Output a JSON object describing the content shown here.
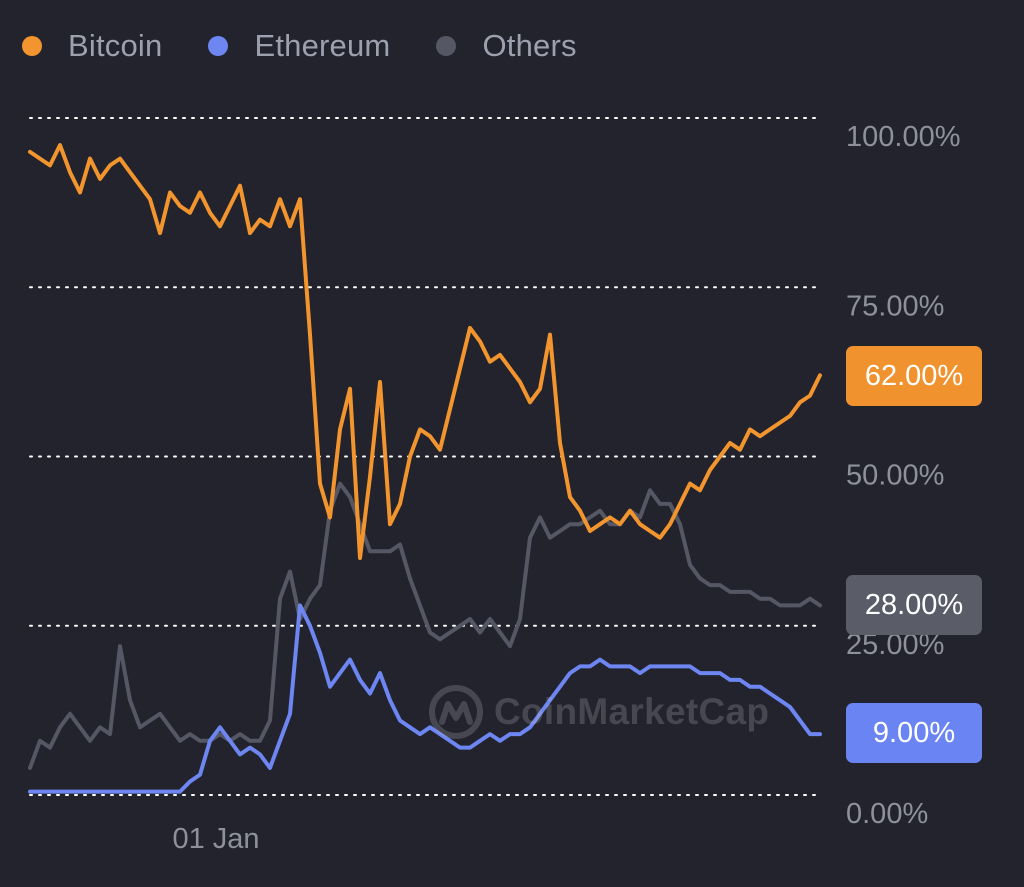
{
  "legend": [
    {
      "label": "Bitcoin",
      "color": "#f2952e"
    },
    {
      "label": "Ethereum",
      "color": "#6d86f2"
    },
    {
      "label": "Others",
      "color": "#555864"
    }
  ],
  "watermark": "CoinMarketCap",
  "colors": {
    "background": "#22232c",
    "grid": "#ffffff",
    "axis_text": "#8e909b"
  },
  "current_values": [
    {
      "series": "Bitcoin",
      "label": "62.00%",
      "color": "#f0922e"
    },
    {
      "series": "Others",
      "label": "28.00%",
      "color": "#5a5d68"
    },
    {
      "series": "Ethereum",
      "label": "9.00%",
      "color": "#6b84f4"
    }
  ],
  "chart_data": {
    "type": "line",
    "title": "",
    "xlabel": "",
    "ylabel": "",
    "ylim": [
      0,
      100
    ],
    "y_ticks": [
      0,
      25,
      50,
      75,
      100
    ],
    "y_tick_labels": [
      "0.00%",
      "25.00%",
      "50.00%",
      "75.00%",
      "100.00%"
    ],
    "x_ticks": [
      {
        "index": 17,
        "label": "01 Jan"
      }
    ],
    "grid": true,
    "legend_position": "top-left",
    "x_index": [
      0,
      1,
      2,
      3,
      4,
      5,
      6,
      7,
      8,
      9,
      10,
      11,
      12,
      13,
      14,
      15,
      16,
      17,
      18,
      19,
      20,
      21,
      22,
      23,
      24,
      25,
      26,
      27,
      28,
      29,
      30,
      31,
      32,
      33,
      34,
      35,
      36,
      37,
      38,
      39,
      40,
      41,
      42,
      43,
      44,
      45,
      46,
      47,
      48,
      49,
      50,
      51,
      52,
      53,
      54,
      55,
      56,
      57,
      58,
      59,
      60,
      61,
      62,
      63,
      64,
      65,
      66,
      67,
      68,
      69,
      70,
      71,
      72,
      73,
      74,
      75,
      76,
      77,
      78,
      79
    ],
    "series": [
      {
        "name": "Bitcoin",
        "color": "#f2952e",
        "values": [
          95,
          94,
          93,
          96,
          92,
          89,
          94,
          91,
          93,
          94,
          92,
          90,
          88,
          83,
          89,
          87,
          86,
          89,
          86,
          84,
          87,
          90,
          83,
          85,
          84,
          88,
          84,
          88,
          68,
          46,
          41,
          54,
          60,
          35,
          47,
          61,
          40,
          43,
          50,
          54,
          53,
          51,
          57,
          63,
          69,
          67,
          64,
          65,
          63,
          61,
          58,
          60,
          68,
          52,
          44,
          42,
          39,
          40,
          41,
          40,
          42,
          40,
          39,
          38,
          40,
          43,
          46,
          45,
          48,
          50,
          52,
          51,
          54,
          53,
          54,
          55,
          56,
          58,
          59,
          62
        ]
      },
      {
        "name": "Ethereum",
        "color": "#6d86f2",
        "values": [
          0.5,
          0.5,
          0.5,
          0.5,
          0.5,
          0.5,
          0.5,
          0.5,
          0.5,
          0.5,
          0.5,
          0.5,
          0.5,
          0.5,
          0.5,
          0.5,
          2,
          3,
          8,
          10,
          8,
          6,
          7,
          6,
          4,
          8,
          12,
          28,
          25,
          21,
          16,
          18,
          20,
          17,
          15,
          18,
          14,
          11,
          10,
          9,
          10,
          9,
          8,
          7,
          7,
          8,
          9,
          8,
          9,
          9,
          10,
          12,
          14,
          16,
          18,
          19,
          19,
          20,
          19,
          19,
          19,
          18,
          19,
          19,
          19,
          19,
          19,
          18,
          18,
          18,
          17,
          17,
          16,
          16,
          15,
          14,
          13,
          11,
          9,
          9
        ]
      },
      {
        "name": "Others",
        "color": "#555864",
        "values": [
          4,
          8,
          7,
          10,
          12,
          10,
          8,
          10,
          9,
          22,
          14,
          10,
          11,
          12,
          10,
          8,
          9,
          8,
          8,
          9,
          8,
          9,
          8,
          8,
          11,
          29,
          33,
          26,
          29,
          31,
          42,
          46,
          44,
          40,
          36,
          36,
          36,
          37,
          32,
          28,
          24,
          23,
          24,
          25,
          26,
          24,
          26,
          24,
          22,
          26,
          38,
          41,
          38,
          39,
          40,
          40,
          41,
          42,
          40,
          40,
          42,
          41,
          45,
          43,
          43,
          40,
          34,
          32,
          31,
          31,
          30,
          30,
          30,
          29,
          29,
          28,
          28,
          28,
          29,
          28
        ]
      }
    ]
  }
}
